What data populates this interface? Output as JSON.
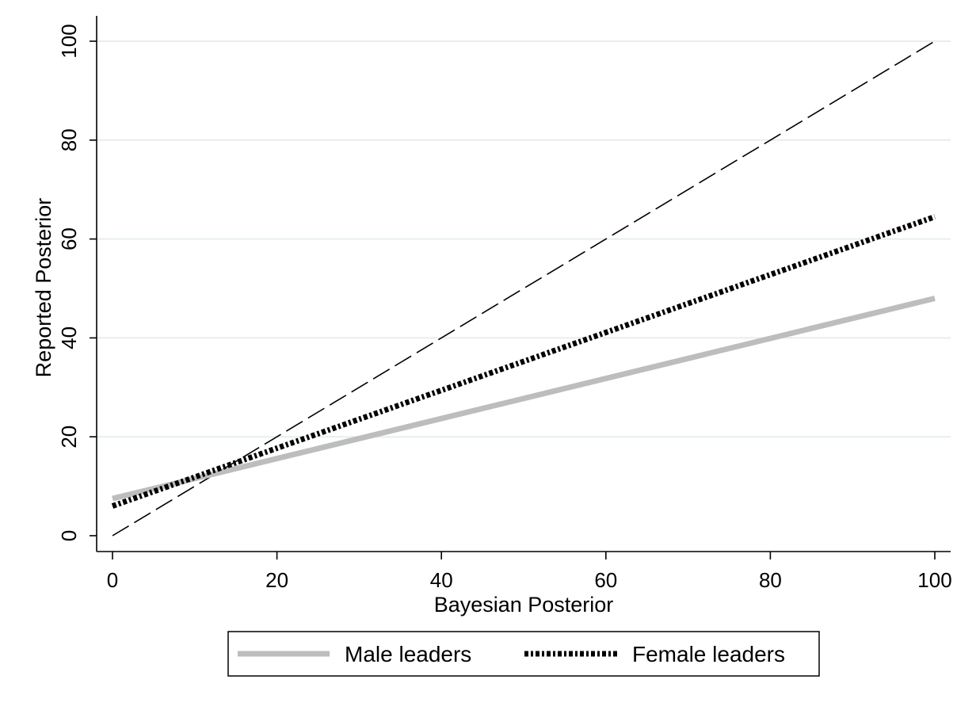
{
  "chart_data": {
    "type": "line",
    "title": "",
    "xlabel": "Bayesian Posterior",
    "ylabel": "Reported Posterior",
    "xlim": [
      0,
      100
    ],
    "ylim": [
      0,
      100
    ],
    "x_ticks": [
      0,
      20,
      40,
      60,
      80,
      100
    ],
    "y_ticks": [
      0,
      20,
      40,
      60,
      80,
      100
    ],
    "x_tick_labels": [
      "0",
      "20",
      "40",
      "60",
      "80",
      "100"
    ],
    "y_tick_labels": [
      "0",
      "20",
      "40",
      "60",
      "80",
      "100"
    ],
    "grid": "horizontal",
    "legend_position": "bottom",
    "series": [
      {
        "name": "Male leaders",
        "style": "solid-thick",
        "color": "#bdbdbd",
        "x": [
          0,
          100
        ],
        "y": [
          7.5,
          48
        ]
      },
      {
        "name": "Female leaders",
        "style": "dash-dot-thick",
        "color": "#000000",
        "x": [
          0,
          100
        ],
        "y": [
          6,
          64.5
        ]
      },
      {
        "style": "long-dash",
        "color": "#000000",
        "x": [
          0,
          100
        ],
        "y": [
          0,
          100
        ]
      }
    ]
  }
}
